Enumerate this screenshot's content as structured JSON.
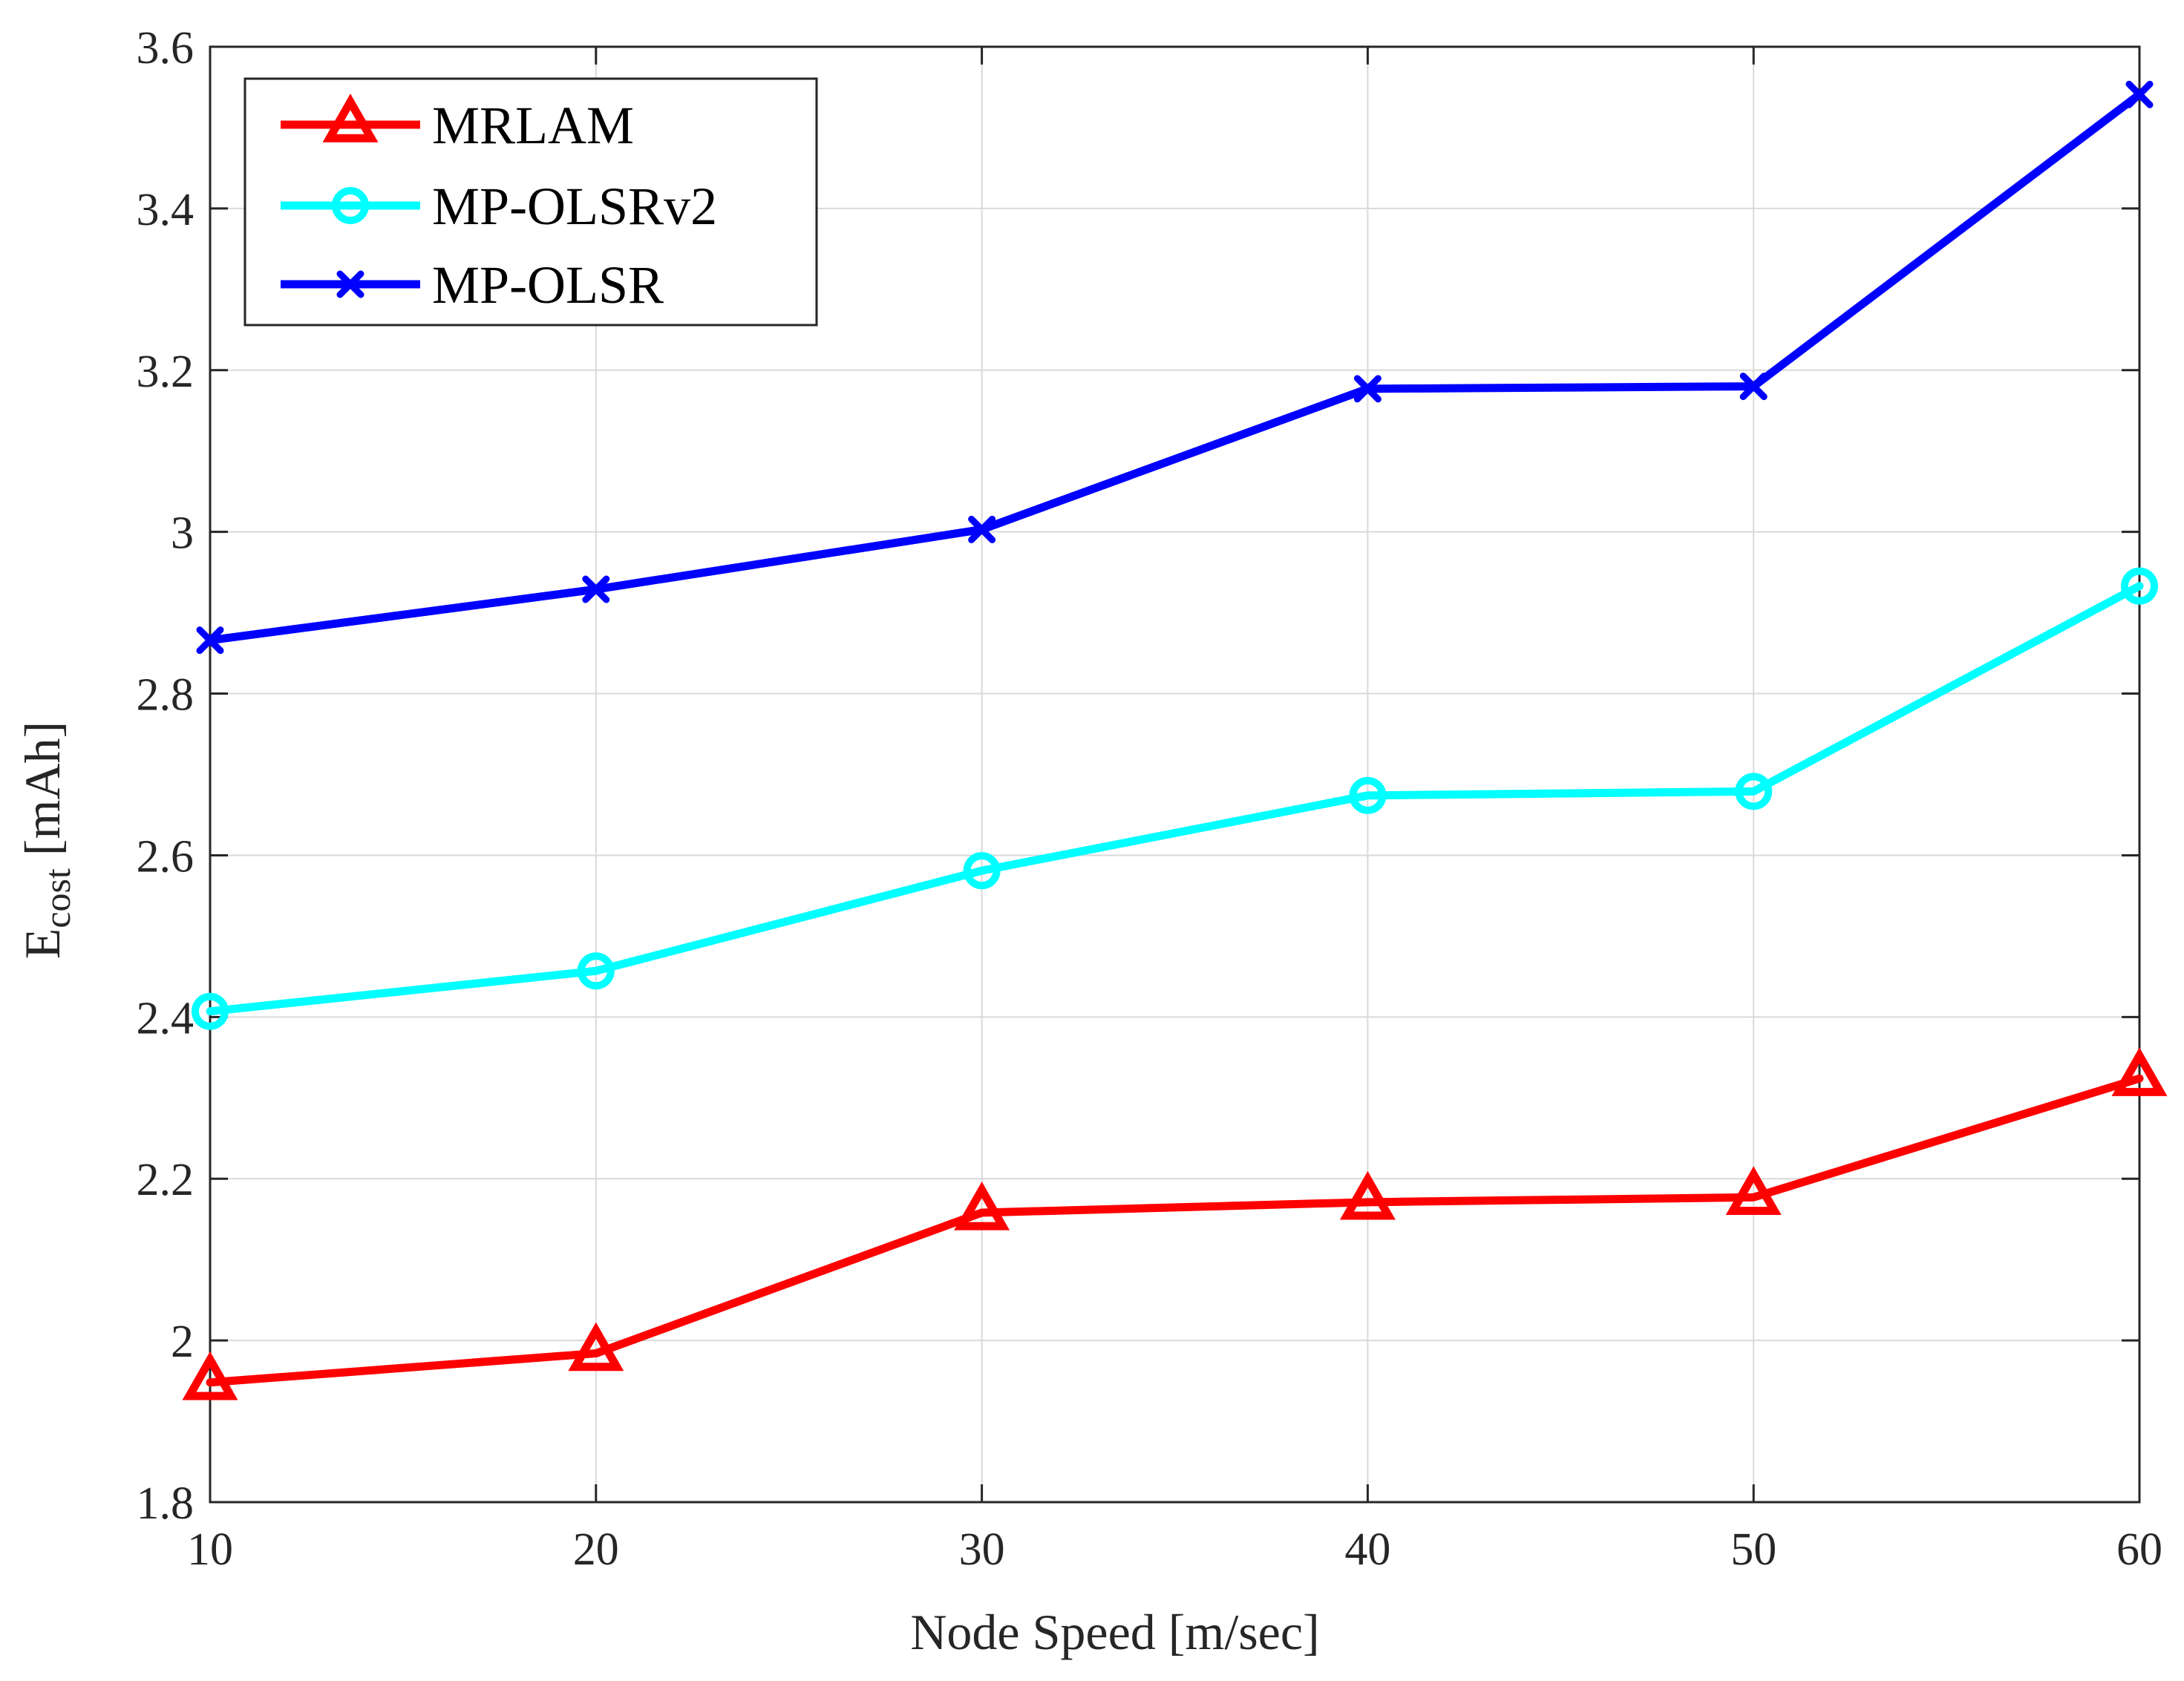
{
  "chart_data": {
    "type": "line",
    "title": "",
    "xlabel": "Node Speed [m/sec]",
    "ylabel": {
      "main": "E",
      "subscript": "cost",
      "unit": " [mAh]"
    },
    "x": [
      10,
      20,
      30,
      40,
      50,
      60
    ],
    "xlim": [
      10,
      60
    ],
    "ylim": [
      1.8,
      3.6
    ],
    "xticks": [
      10,
      20,
      30,
      40,
      50,
      60
    ],
    "xtick_labels": [
      "10",
      "20",
      "30",
      "40",
      "50",
      "60"
    ],
    "yticks": [
      1.8,
      2.0,
      2.2,
      2.4,
      2.6,
      2.8,
      3.0,
      3.2,
      3.4,
      3.6
    ],
    "ytick_labels": [
      "1.8",
      "2",
      "2.2",
      "2.4",
      "2.6",
      "2.8",
      "3",
      "3.2",
      "3.4",
      "3.6"
    ],
    "grid": true,
    "legend_position": "top-left",
    "series": [
      {
        "name": "MRLAM",
        "color": "#ff0000",
        "marker": "triangle",
        "values": [
          1.948,
          1.984,
          2.158,
          2.171,
          2.177,
          2.324
        ]
      },
      {
        "name": "MP-OLSRv2",
        "color": "#00ffff",
        "marker": "circle",
        "values": [
          2.407,
          2.457,
          2.581,
          2.674,
          2.679,
          2.933
        ]
      },
      {
        "name": "MP-OLSR",
        "color": "#0000ff",
        "marker": "x",
        "values": [
          2.866,
          2.929,
          3.003,
          3.177,
          3.18,
          3.541
        ]
      }
    ]
  }
}
